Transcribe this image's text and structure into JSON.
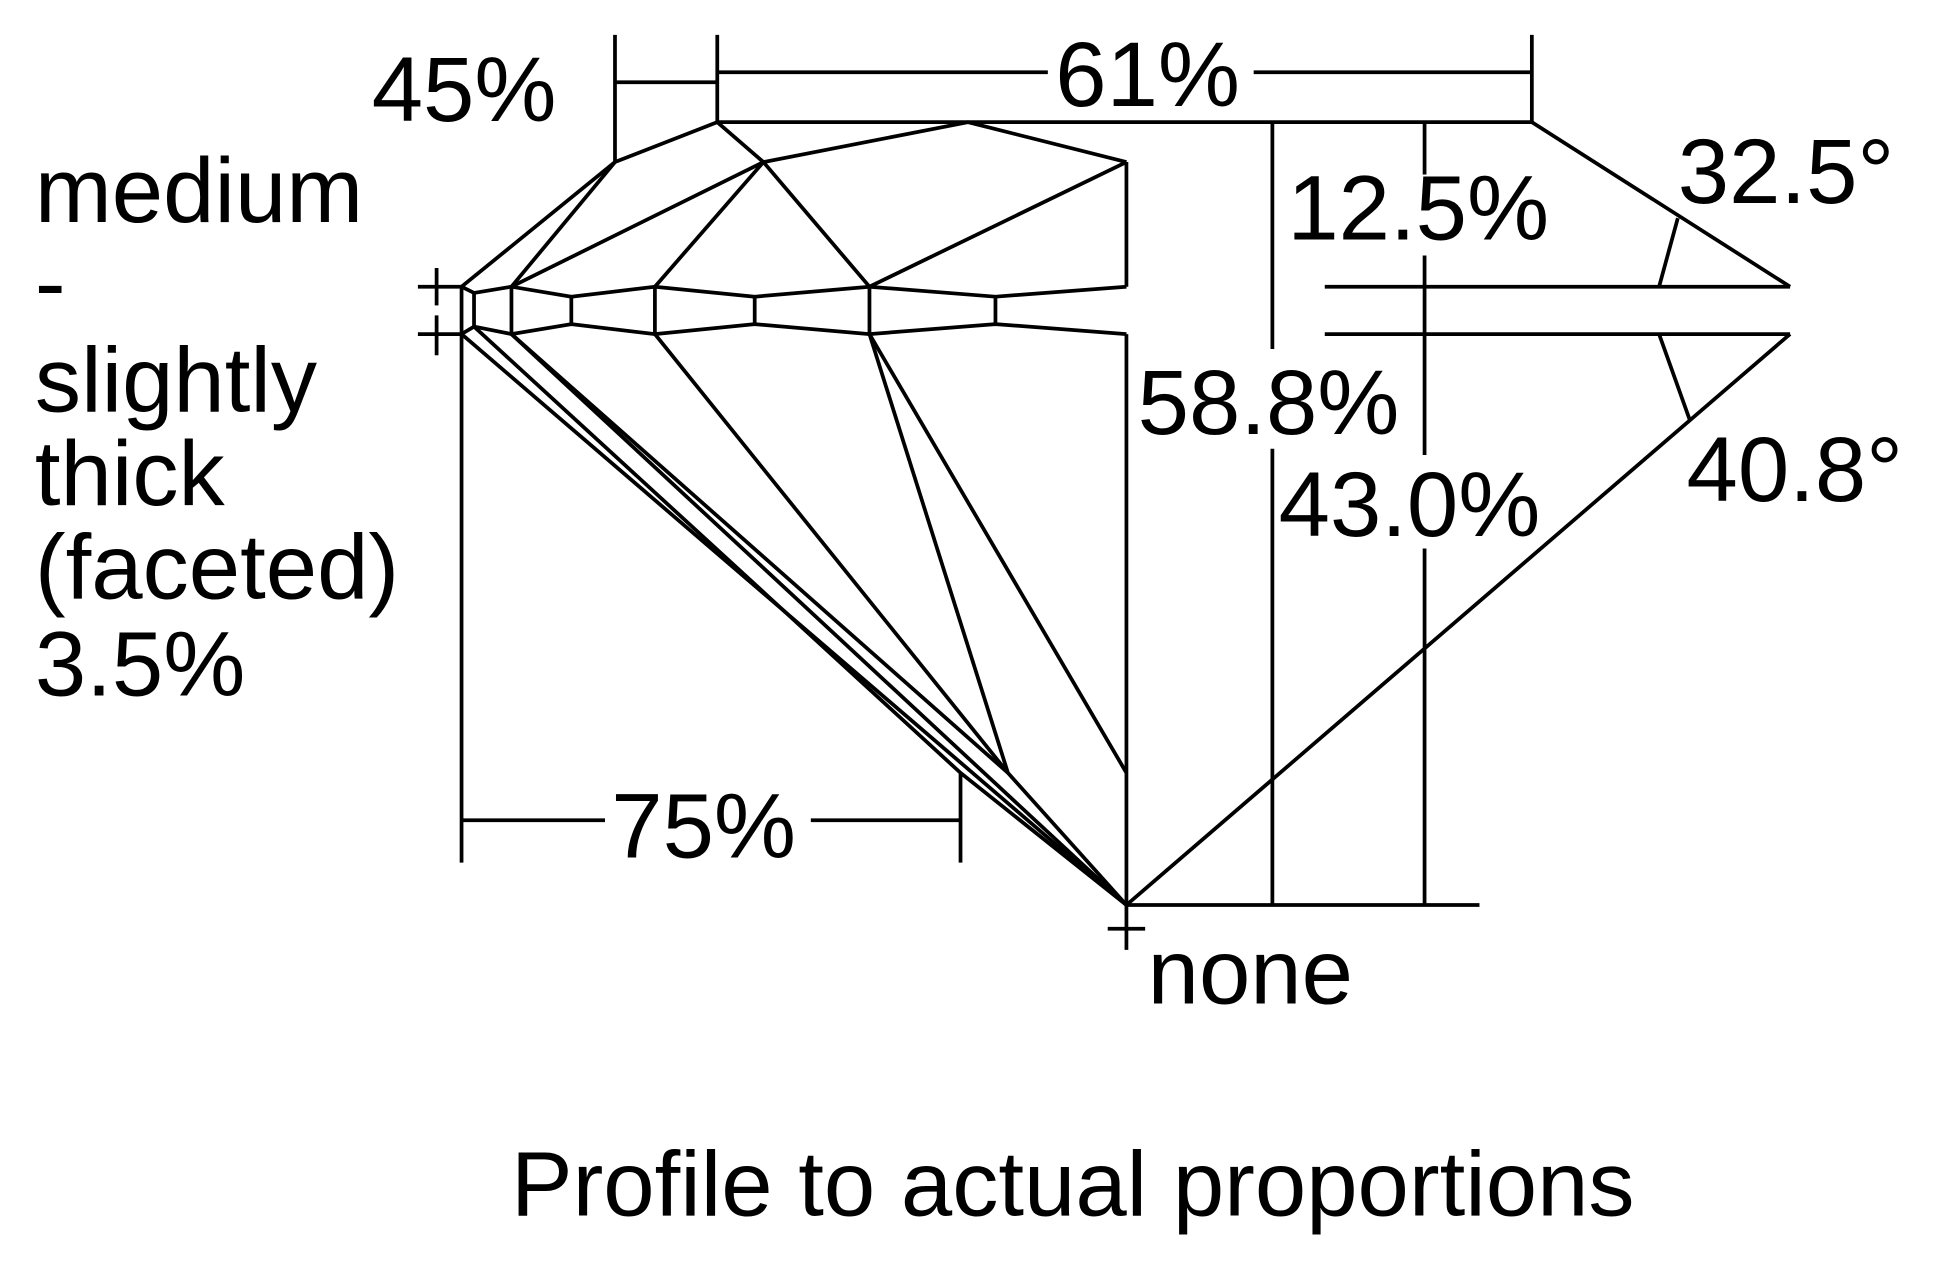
{
  "diagram": {
    "title": "Profile to actual proportions",
    "line_color": "#000000",
    "background": "#ffffff",
    "labels": {
      "star_length": "45%",
      "table": "61%",
      "crown_height": "12.5%",
      "crown_angle": "32.5°",
      "total_depth": "58.8%",
      "pavilion_depth": "43.0%",
      "pavilion_angle": "40.8°",
      "lower_half": "75%",
      "culet": "none",
      "girdle": [
        "medium",
        "-",
        "slightly",
        "thick",
        "(faceted)",
        "3.5%"
      ]
    }
  }
}
